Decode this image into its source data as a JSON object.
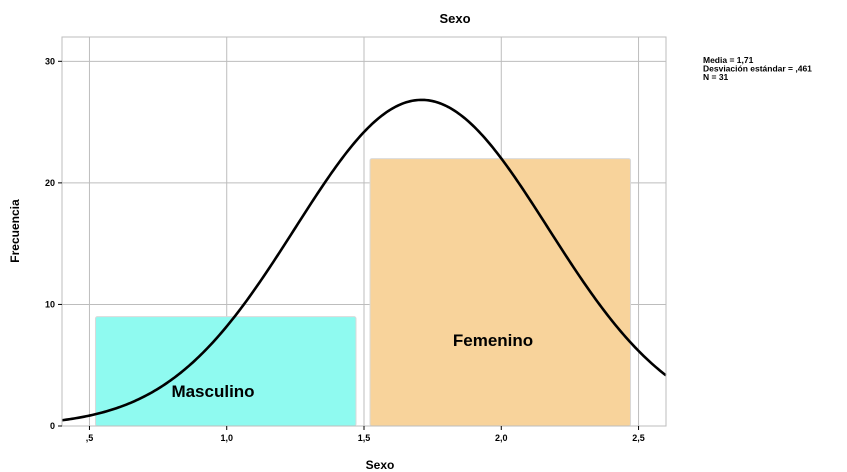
{
  "chart_data": {
    "type": "bar",
    "title": "Sexo",
    "xlabel": "Sexo",
    "ylabel": "Frecuencia",
    "xlim": [
      0.4,
      2.6
    ],
    "ylim": [
      0,
      32
    ],
    "x_ticks": [
      0.5,
      1.0,
      1.5,
      2.0,
      2.5
    ],
    "x_tick_labels": [
      ",5",
      "1,0",
      "1,5",
      "2,0",
      "2,5"
    ],
    "y_ticks": [
      0,
      10,
      20,
      30
    ],
    "y_tick_labels": [
      "0",
      "10",
      "20",
      "30"
    ],
    "grid": true,
    "bars": [
      {
        "category": "Masculino",
        "x_start": 0.5,
        "x_end": 1.5,
        "value": 9,
        "color": "#8ffaf0"
      },
      {
        "category": "Femenino",
        "x_start": 1.5,
        "x_end": 2.5,
        "value": 22,
        "color": "#f8d39b"
      }
    ],
    "normal_curve": {
      "mean": 1.71,
      "sd": 0.461,
      "n": 31,
      "bin_width": 1,
      "color": "#000000"
    },
    "stats_box": [
      "Media = 1,71",
      "Desviación estándar = ,461",
      "N = 31"
    ],
    "stats_position": "top-right"
  }
}
